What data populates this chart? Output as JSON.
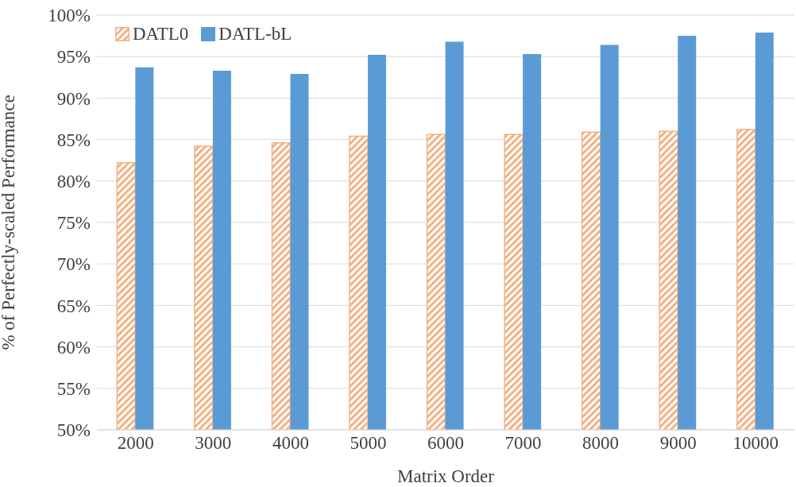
{
  "chart_data": {
    "type": "bar",
    "xlabel": "Matrix Order",
    "ylabel": "% of Perfectly-scaled Performance",
    "categories": [
      "2000",
      "3000",
      "4000",
      "5000",
      "6000",
      "7000",
      "8000",
      "9000",
      "10000"
    ],
    "series": [
      {
        "name": "DATL0",
        "color": "#f4b183",
        "values": [
          82.2,
          84.2,
          84.6,
          85.4,
          85.6,
          85.6,
          85.9,
          86.0,
          86.2
        ]
      },
      {
        "name": "DATL-bL",
        "color": "#5b9bd5",
        "values": [
          93.7,
          93.3,
          92.9,
          95.2,
          96.8,
          95.3,
          96.4,
          97.5,
          97.9
        ]
      }
    ],
    "ylim": [
      50,
      100
    ],
    "yticks": [
      {
        "value": 50,
        "label": "50%"
      },
      {
        "value": 55,
        "label": "55%"
      },
      {
        "value": 60,
        "label": "60%"
      },
      {
        "value": 65,
        "label": "65%"
      },
      {
        "value": 70,
        "label": "70%"
      },
      {
        "value": 75,
        "label": "75%"
      },
      {
        "value": 80,
        "label": "80%"
      },
      {
        "value": 85,
        "label": "85%"
      },
      {
        "value": 90,
        "label": "90%"
      },
      {
        "value": 95,
        "label": "95%"
      },
      {
        "value": 100,
        "label": "100%"
      }
    ],
    "grid": "y",
    "legend": "top left"
  }
}
